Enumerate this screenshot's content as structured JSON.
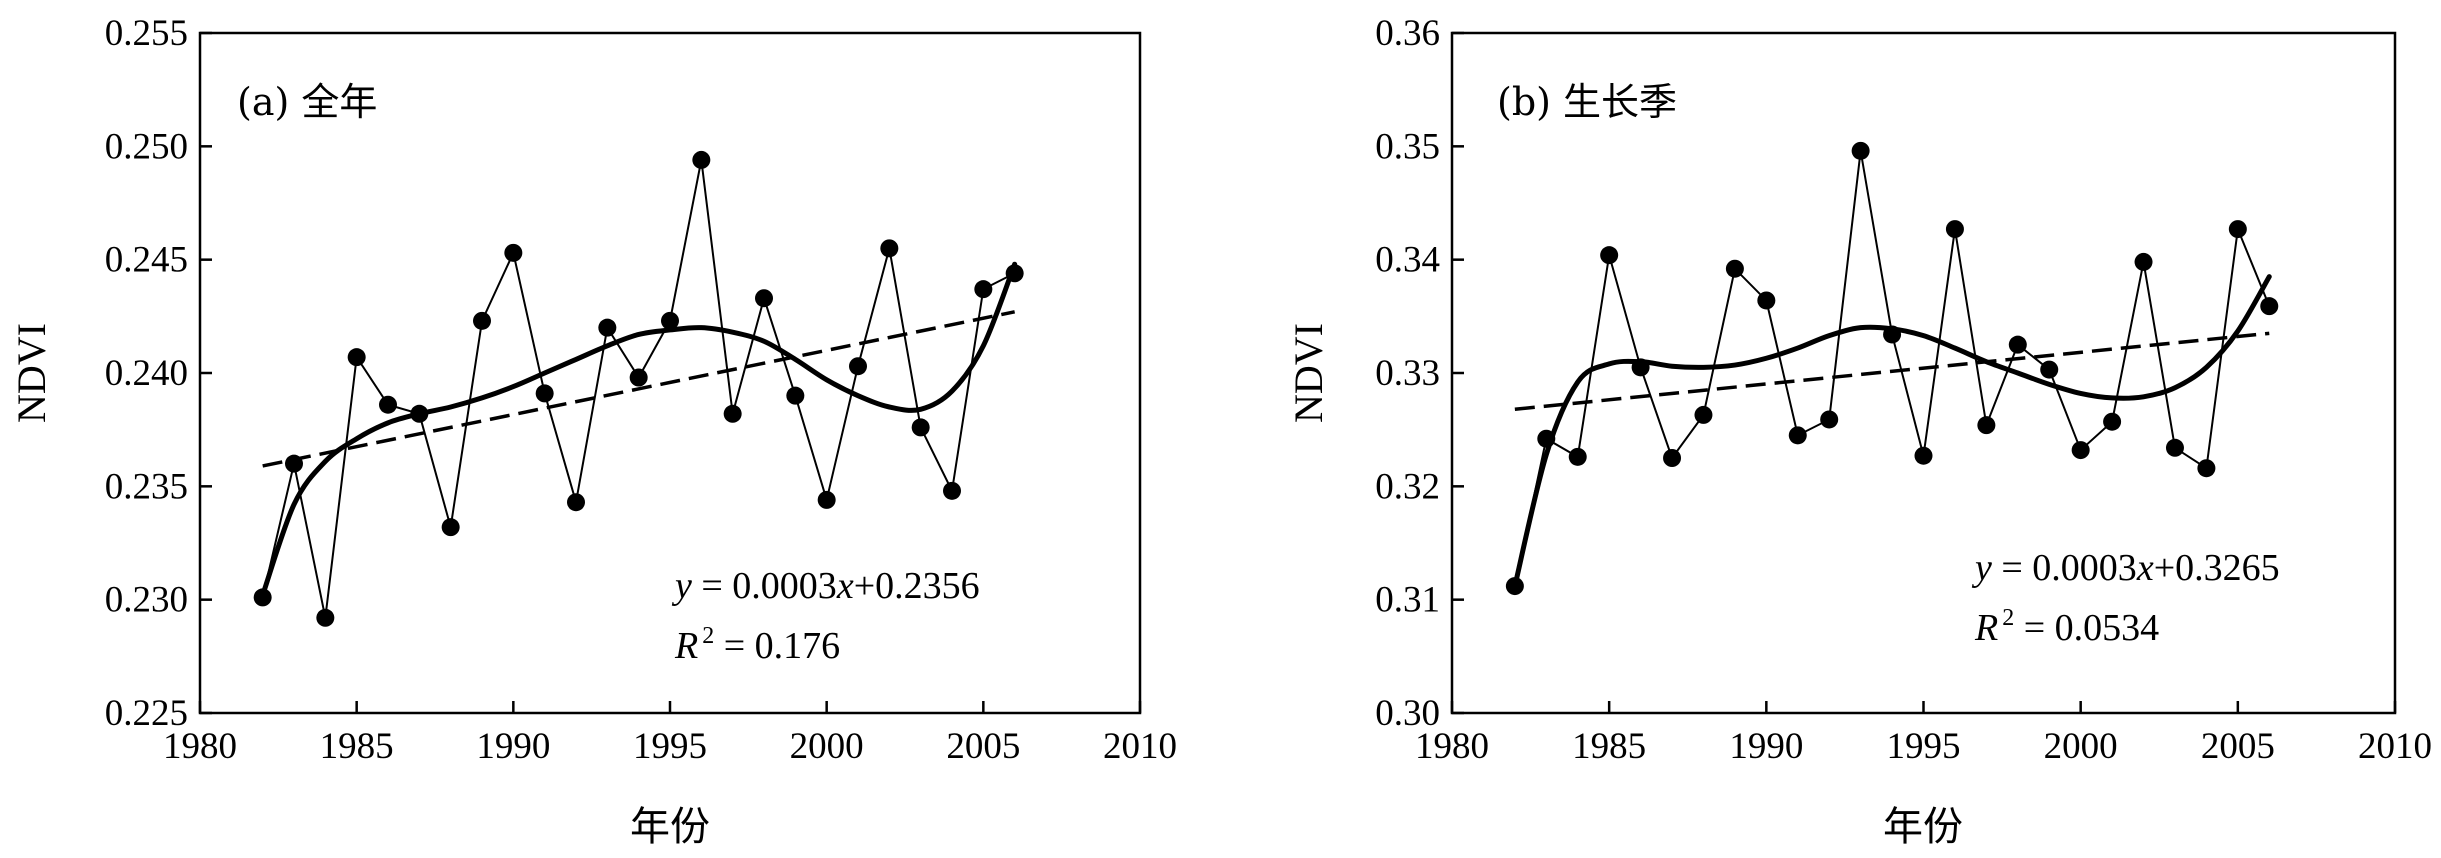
{
  "xlabel_text": "年份",
  "ylabel_text": "NDVI",
  "chart_data": [
    {
      "type": "line",
      "title": "(a) 全年",
      "xlabel": "年份",
      "ylabel": "NDVI",
      "xlim": [
        1980,
        2010
      ],
      "ylim": [
        0.225,
        0.255
      ],
      "x_ticks": [
        1980,
        1985,
        1990,
        1995,
        2000,
        2005,
        2010
      ],
      "y_ticks": [
        0.225,
        0.23,
        0.235,
        0.24,
        0.245,
        0.25,
        0.255
      ],
      "x_tick_labels": [
        "1980",
        "1985",
        "1990",
        "1995",
        "2000",
        "2005",
        "2010"
      ],
      "y_tick_labels": [
        "0.225",
        "0.230",
        "0.235",
        "0.240",
        "0.245",
        "0.250",
        "0.255"
      ],
      "grid": false,
      "series": [
        {
          "style": "line-markers",
          "x": [
            1982,
            1983,
            1984,
            1985,
            1986,
            1987,
            1988,
            1989,
            1990,
            1991,
            1992,
            1993,
            1994,
            1995,
            1996,
            1997,
            1998,
            1999,
            2000,
            2001,
            2002,
            2003,
            2004,
            2005,
            2006
          ],
          "y": [
            0.2301,
            0.236,
            0.2292,
            0.2407,
            0.2386,
            0.2382,
            0.2332,
            0.2423,
            0.2453,
            0.2391,
            0.2343,
            0.242,
            0.2398,
            0.2423,
            0.2494,
            0.2382,
            0.2433,
            0.239,
            0.2344,
            0.2403,
            0.2455,
            0.2376,
            0.2348,
            0.2437,
            0.2444
          ]
        },
        {
          "style": "smooth-thick",
          "x": [
            1982,
            1983,
            1984,
            1985,
            1986,
            1987,
            1988,
            1989,
            1990,
            1991,
            1992,
            1993,
            1994,
            1995,
            1996,
            1997,
            1998,
            1999,
            2000,
            2001,
            2002,
            2003,
            2004,
            2005,
            2006
          ],
          "y": [
            0.2302,
            0.2342,
            0.2361,
            0.2371,
            0.2378,
            0.2382,
            0.2385,
            0.2389,
            0.2394,
            0.24,
            0.2406,
            0.2412,
            0.2417,
            0.2419,
            0.242,
            0.2418,
            0.2414,
            0.2406,
            0.2397,
            0.239,
            0.2385,
            0.2384,
            0.2392,
            0.2412,
            0.2448
          ]
        },
        {
          "style": "dashed-trend",
          "x": [
            1982,
            2006
          ],
          "y": [
            0.2359,
            0.2427
          ]
        }
      ],
      "annotations": [
        {
          "italic": "y",
          "text": " = 0.0003",
          "italic2": "x",
          "text2": "+0.2356"
        },
        {
          "italic": "R",
          "sup": "2",
          "text": " = 0.176"
        }
      ]
    },
    {
      "type": "line",
      "title": "(b) 生长季",
      "xlabel": "年份",
      "ylabel": "NDVI",
      "xlim": [
        1980,
        2010
      ],
      "ylim": [
        0.3,
        0.36
      ],
      "x_ticks": [
        1980,
        1985,
        1990,
        1995,
        2000,
        2005,
        2010
      ],
      "y_ticks": [
        0.3,
        0.31,
        0.32,
        0.33,
        0.34,
        0.35,
        0.36
      ],
      "x_tick_labels": [
        "1980",
        "1985",
        "1990",
        "1995",
        "2000",
        "2005",
        "2010"
      ],
      "y_tick_labels": [
        "0.30",
        "0.31",
        "0.32",
        "0.33",
        "0.34",
        "0.35",
        "0.36"
      ],
      "grid": false,
      "series": [
        {
          "style": "line-markers",
          "x": [
            1982,
            1983,
            1984,
            1985,
            1986,
            1987,
            1988,
            1989,
            1990,
            1991,
            1992,
            1993,
            1994,
            1995,
            1996,
            1997,
            1998,
            1999,
            2000,
            2001,
            2002,
            2003,
            2004,
            2005,
            2006
          ],
          "y": [
            0.3112,
            0.3242,
            0.3226,
            0.3404,
            0.3305,
            0.3225,
            0.3263,
            0.3392,
            0.3364,
            0.3245,
            0.3259,
            0.3496,
            0.3334,
            0.3227,
            0.3427,
            0.3254,
            0.3325,
            0.3303,
            0.3232,
            0.3257,
            0.3398,
            0.3234,
            0.3216,
            0.3427,
            0.3359
          ]
        },
        {
          "style": "smooth-thick",
          "x": [
            1982,
            1983,
            1984,
            1985,
            1986,
            1987,
            1988,
            1989,
            1990,
            1991,
            1992,
            1993,
            1994,
            1995,
            1996,
            1997,
            1998,
            1999,
            2000,
            2001,
            2002,
            2003,
            2004,
            2005,
            2006
          ],
          "y": [
            0.3112,
            0.3228,
            0.3292,
            0.3308,
            0.331,
            0.3306,
            0.3305,
            0.3307,
            0.3313,
            0.3322,
            0.3333,
            0.334,
            0.3339,
            0.3333,
            0.3322,
            0.331,
            0.33,
            0.329,
            0.3282,
            0.3278,
            0.3279,
            0.3287,
            0.3305,
            0.3337,
            0.3385
          ]
        },
        {
          "style": "dashed-trend",
          "x": [
            1982,
            2006
          ],
          "y": [
            0.3268,
            0.3335
          ]
        }
      ],
      "annotations": [
        {
          "italic": "y",
          "text": " = 0.0003",
          "italic2": "x",
          "text2": "+0.3265"
        },
        {
          "italic": "R",
          "sup": "2",
          "text": " = 0.0534"
        }
      ]
    }
  ]
}
